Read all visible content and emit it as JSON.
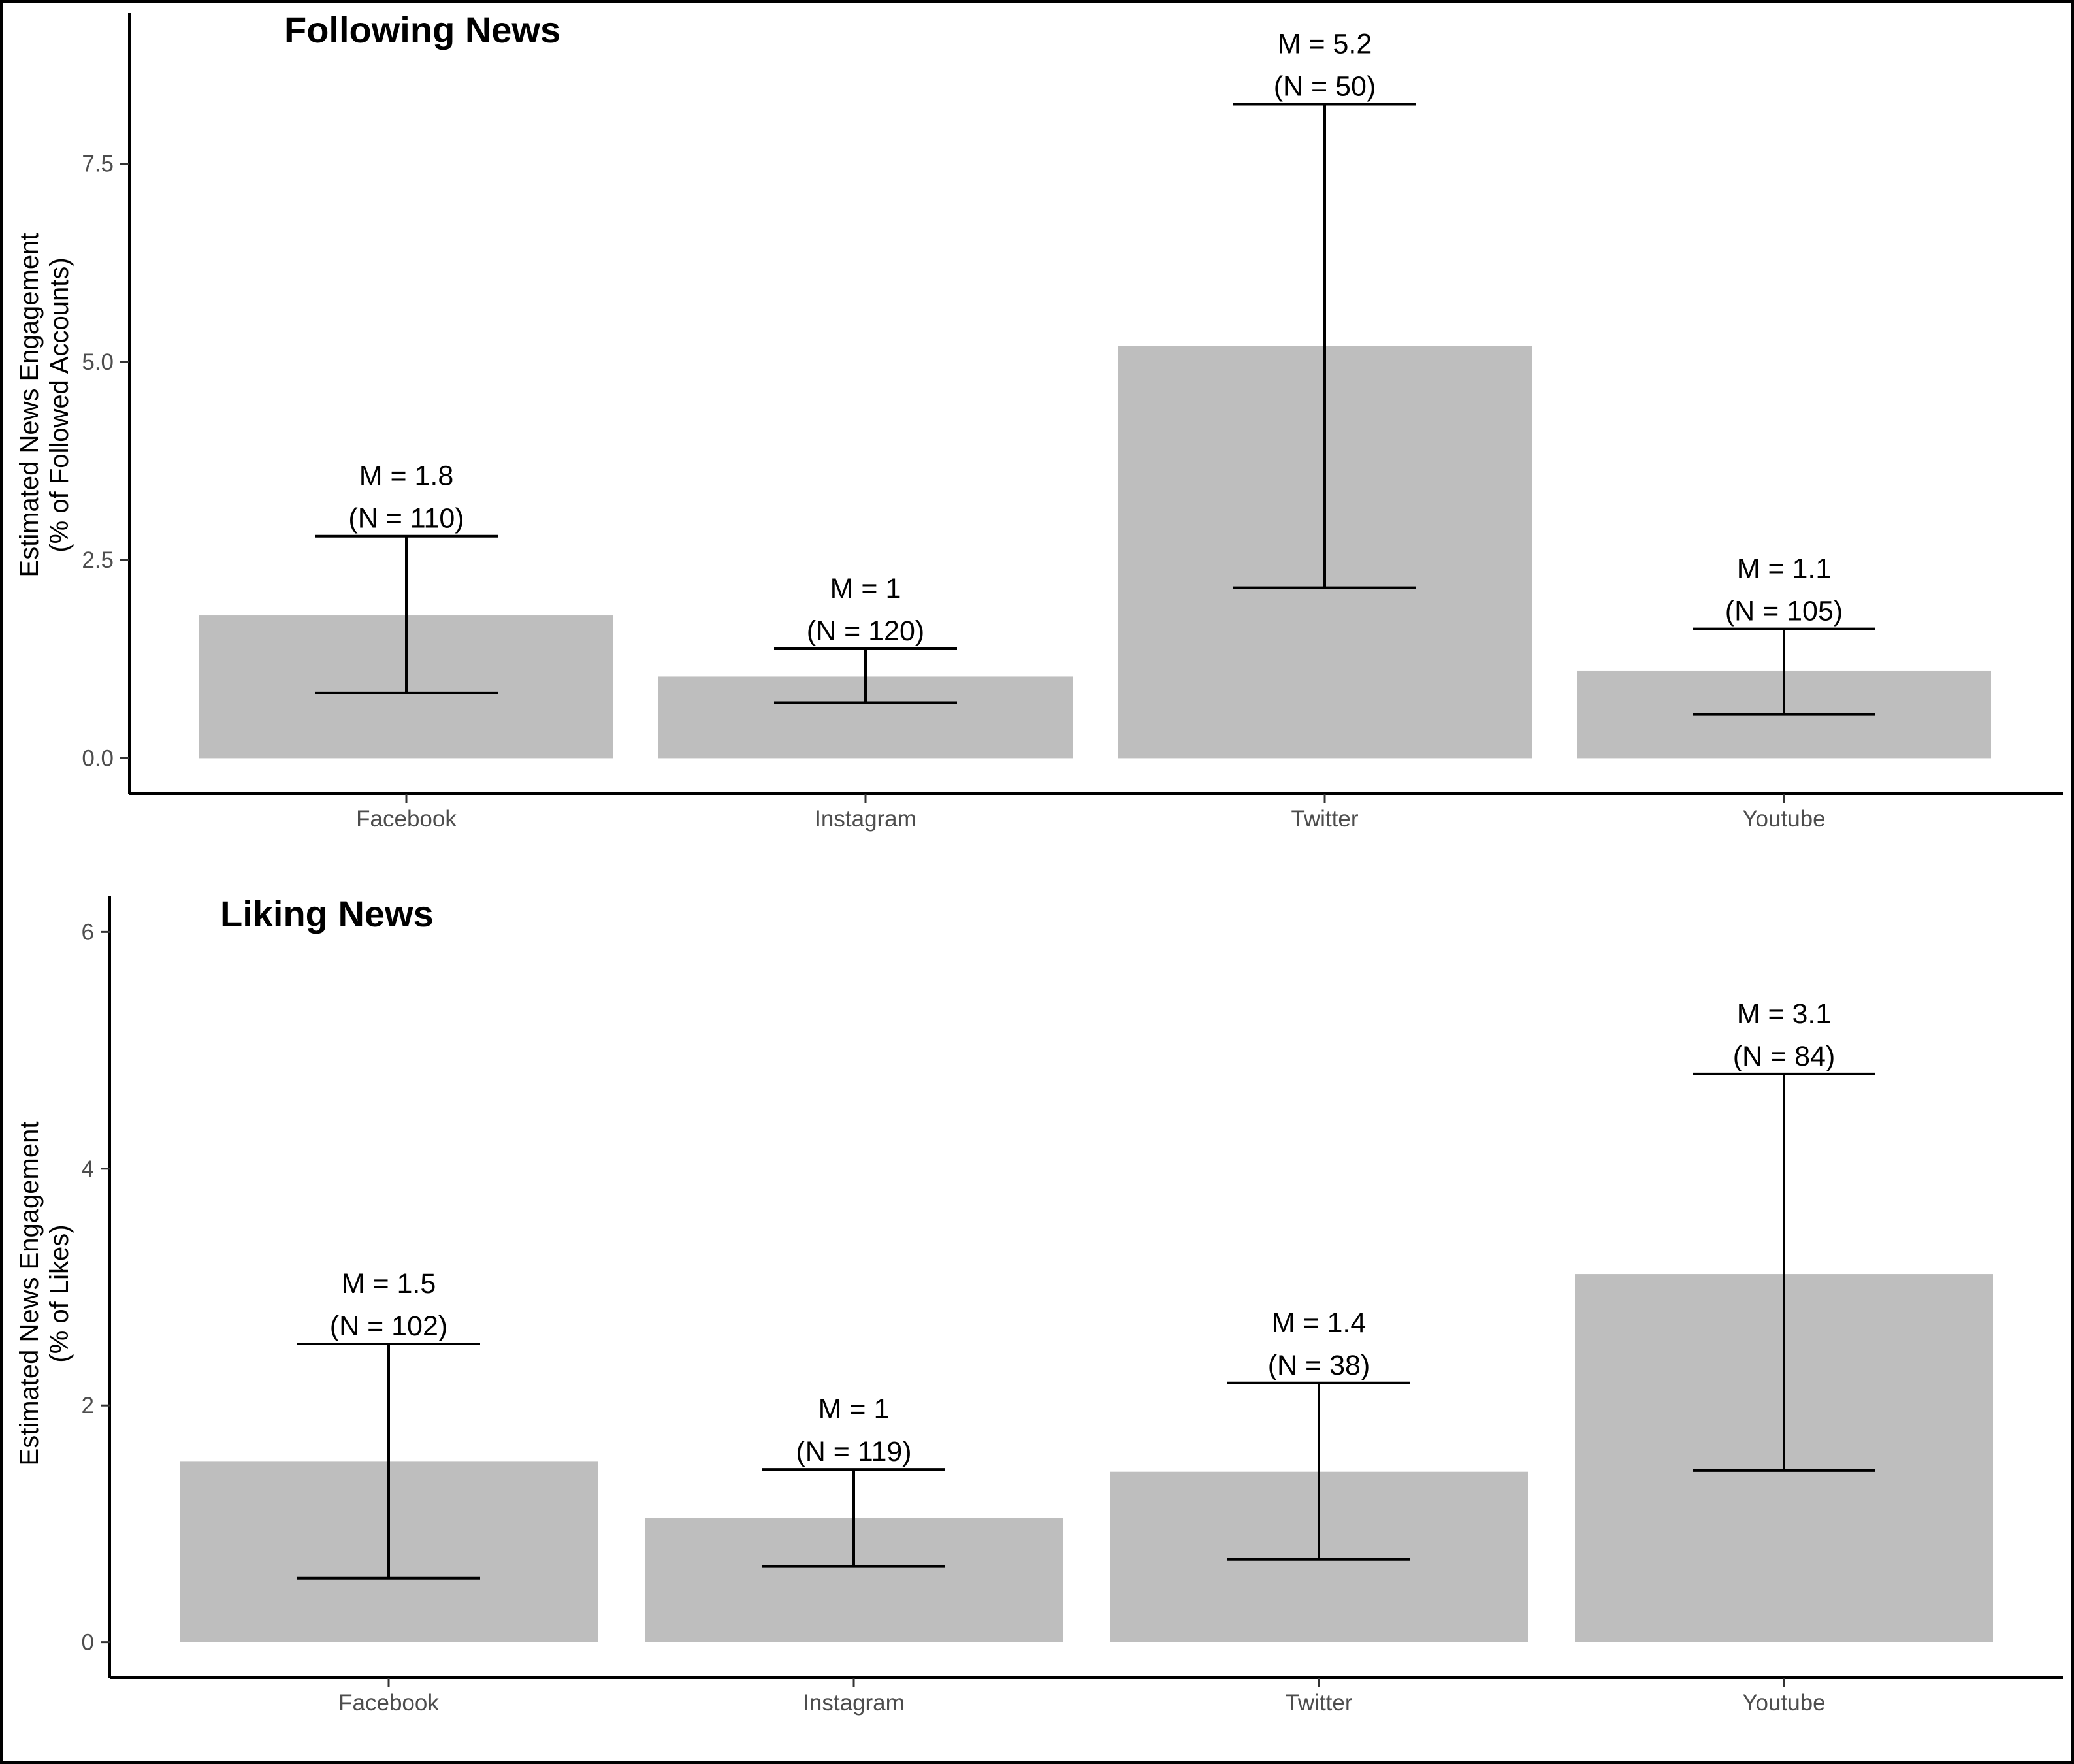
{
  "chart_data": [
    {
      "type": "bar",
      "title": "Following News",
      "ylabel": [
        "Estimated News Engagement",
        "(% of Followed Accounts)"
      ],
      "xlabel": "",
      "categories": [
        "Facebook",
        "Instagram",
        "Twitter",
        "Youtube"
      ],
      "values": [
        1.8,
        1.03,
        5.2,
        1.1
      ],
      "error_low": [
        0.82,
        0.7,
        2.15,
        0.55
      ],
      "error_high": [
        2.8,
        1.38,
        8.25,
        1.63
      ],
      "annotations": [
        [
          "M = 1.8",
          "(N = 110)"
        ],
        [
          "M = 1",
          "(N = 120)"
        ],
        [
          "M = 5.2",
          "(N = 50)"
        ],
        [
          "M = 1.1",
          "(N = 105)"
        ]
      ],
      "yticks": [
        0,
        2.5,
        5,
        7.5
      ],
      "ytick_labels": [
        "0.0",
        "2.5",
        "5.0",
        "7.5"
      ],
      "ylim": [
        -0.45,
        9.4
      ],
      "grid": false,
      "colors": {
        "bar": "#bebebe",
        "line": "#000000"
      }
    },
    {
      "type": "bar",
      "title": "Liking News",
      "ylabel": [
        "Estimated News Engagement",
        "(% of Likes)"
      ],
      "xlabel": "",
      "categories": [
        "Facebook",
        "Instagram",
        "Twitter",
        "Youtube"
      ],
      "values": [
        1.53,
        1.05,
        1.44,
        3.11
      ],
      "error_low": [
        0.54,
        0.64,
        0.7,
        1.45
      ],
      "error_high": [
        2.52,
        1.46,
        2.19,
        4.8
      ],
      "annotations": [
        [
          "M = 1.5",
          "(N = 102)"
        ],
        [
          "M = 1",
          "(N = 119)"
        ],
        [
          "M = 1.4",
          "(N = 38)"
        ],
        [
          "M = 3.1",
          "(N = 84)"
        ]
      ],
      "yticks": [
        0,
        2,
        4,
        6
      ],
      "ytick_labels": [
        "0",
        "2",
        "4",
        "6"
      ],
      "ylim": [
        -0.3,
        6.3
      ],
      "grid": false,
      "colors": {
        "bar": "#bebebe",
        "line": "#000000"
      }
    }
  ]
}
